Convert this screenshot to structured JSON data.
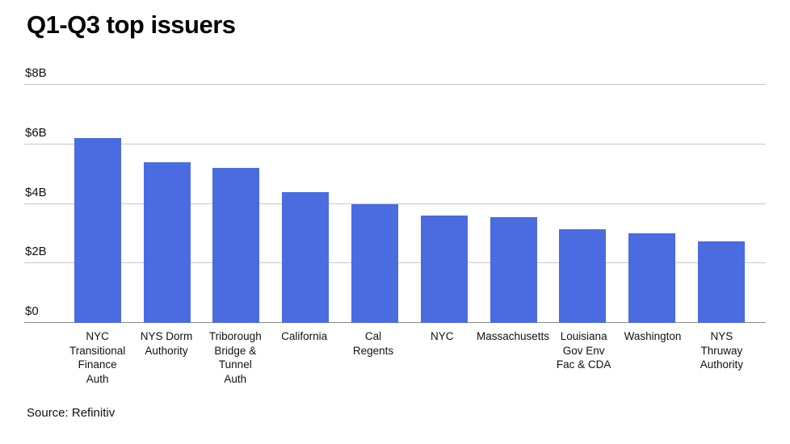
{
  "title": "Q1-Q3 top issuers",
  "source": "Source: Refinitiv",
  "colors": {
    "bar": "#4a6ce0",
    "gridline": "#c9c9c9",
    "axis": "#8a8a8a",
    "text": "#111111",
    "background": "#ffffff"
  },
  "chart_data": {
    "type": "bar",
    "title": "Q1-Q3 top issuers",
    "categories": [
      "NYC Transitional Finance Auth",
      "NYS Dorm Authority",
      "Triborough Bridge & Tunnel Auth",
      "California",
      "Cal Regents",
      "NYC",
      "Massachusetts",
      "Louisiana Gov Env Fac & CDA",
      "Washington",
      "NYS Thruway Authority"
    ],
    "category_lines": [
      [
        "NYC",
        "Transitional",
        "Finance",
        "Auth"
      ],
      [
        "NYS Dorm",
        "Authority"
      ],
      [
        "Triborough",
        "Bridge &",
        "Tunnel",
        "Auth"
      ],
      [
        "California"
      ],
      [
        "Cal",
        "Regents"
      ],
      [
        "NYC"
      ],
      [
        "Massachusetts"
      ],
      [
        "Louisiana",
        "Gov Env",
        "Fac & CDA"
      ],
      [
        "Washington"
      ],
      [
        "NYS",
        "Thruway",
        "Authority"
      ]
    ],
    "values": [
      6.2,
      5.4,
      5.2,
      4.4,
      4.0,
      3.6,
      3.55,
      3.15,
      3.0,
      2.75
    ],
    "unit": "billions USD",
    "xlabel": "",
    "ylabel": "",
    "ylim": [
      0,
      8
    ],
    "yticks": [
      "$0",
      "$2B",
      "$4B",
      "$6B",
      "$8B"
    ],
    "grid": true,
    "legend": "none",
    "bar_color": "#4a6ce0",
    "source": "Source: Refinitiv"
  }
}
